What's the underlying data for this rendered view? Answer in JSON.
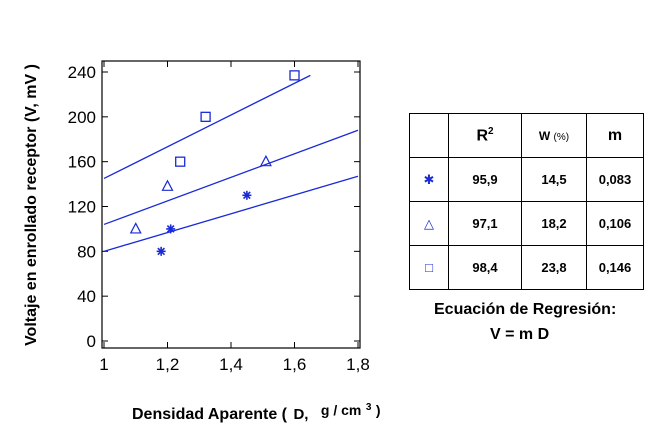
{
  "chart_data": {
    "type": "scatter",
    "title": "",
    "xlabel": "Densidad Aparente (",
    "xlabel_var": "D,",
    "xlabel_unit": "g / cm",
    "xlabel_exp": "3",
    "xlabel_close": ")",
    "ylabel": "Voltaje en enrollado receptor (V,  mV )",
    "xlim": [
      1.0,
      1.8
    ],
    "ylim": [
      0,
      240
    ],
    "xticks": [
      1,
      1.2,
      1.4,
      1.6,
      1.8
    ],
    "xtick_labels": [
      "1",
      "1,2",
      "1,4",
      "1,6",
      "1,8"
    ],
    "yticks": [
      0,
      40,
      80,
      120,
      160,
      200,
      240
    ],
    "ytick_labels": [
      "0",
      "40",
      "80",
      "120",
      "160",
      "200",
      "240"
    ],
    "color": "#1a2bd6",
    "series": [
      {
        "marker": "asterisk",
        "points": [
          [
            1.18,
            80
          ],
          [
            1.21,
            100
          ],
          [
            1.45,
            130
          ]
        ],
        "line": [
          [
            1.0,
            80
          ],
          [
            1.8,
            147
          ]
        ]
      },
      {
        "marker": "triangle",
        "points": [
          [
            1.1,
            100
          ],
          [
            1.2,
            138
          ],
          [
            1.51,
            160
          ]
        ],
        "line": [
          [
            1.0,
            104
          ],
          [
            1.8,
            188
          ]
        ]
      },
      {
        "marker": "square",
        "points": [
          [
            1.24,
            160
          ],
          [
            1.32,
            200
          ],
          [
            1.6,
            237
          ]
        ],
        "line": [
          [
            1.0,
            145
          ],
          [
            1.65,
            237
          ]
        ]
      }
    ]
  },
  "table": {
    "headers": [
      "R",
      "W",
      "(%)",
      "m"
    ],
    "r_exp": "2",
    "rows": [
      {
        "symbol": "✱",
        "r2": "95,9",
        "w": "14,5",
        "m": "0,083"
      },
      {
        "symbol": "△",
        "r2": "97,1",
        "w": "18,2",
        "m": "0,106"
      },
      {
        "symbol": "□",
        "r2": "98,4",
        "w": "23,8",
        "m": "0,146"
      }
    ]
  },
  "equation": {
    "label": "Ecuación de Regresión:",
    "formula": "V = m D"
  }
}
